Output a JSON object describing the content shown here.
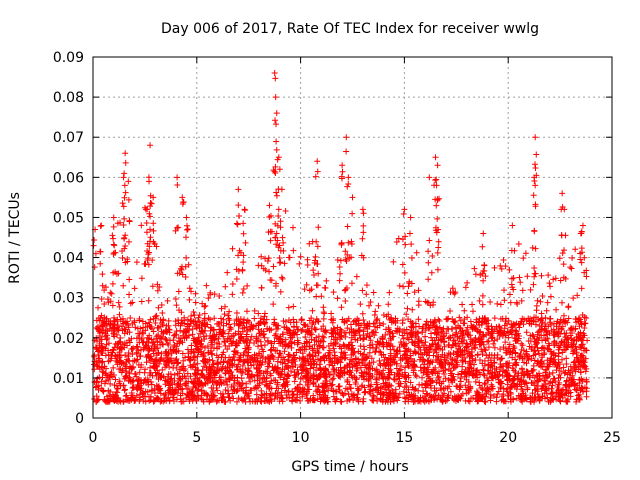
{
  "chart_data": {
    "type": "scatter",
    "title": "Day 006 of 2017, Rate Of TEC Index for receiver wwlg",
    "xlabel": "GPS time / hours",
    "ylabel": "ROTI / TECUs",
    "xlim": [
      0,
      25
    ],
    "ylim": [
      0,
      0.09
    ],
    "xticks": [
      0,
      5,
      10,
      15,
      20,
      25
    ],
    "xtick_labels": [
      "0",
      "5",
      "10",
      "15",
      "20",
      "25"
    ],
    "yticks": [
      0,
      0.01,
      0.02,
      0.03,
      0.04,
      0.05,
      0.06,
      0.07,
      0.08,
      0.09
    ],
    "ytick_labels": [
      "0",
      "0.01",
      "0.02",
      "0.03",
      "0.04",
      "0.05",
      "0.06",
      "0.07",
      "0.08",
      "0.09"
    ],
    "grid": true,
    "marker": "plus",
    "color": "#ff0000",
    "series": [
      {
        "name": "ROTI",
        "x_range": [
          0.05,
          23.8
        ],
        "baseline_range": [
          0.004,
          0.025
        ],
        "envelope": [
          [
            0.0,
            0.03
          ],
          [
            0.5,
            0.032
          ],
          [
            1.0,
            0.045
          ],
          [
            1.5,
            0.055
          ],
          [
            2.0,
            0.035
          ],
          [
            2.5,
            0.055
          ],
          [
            3.0,
            0.045
          ],
          [
            3.5,
            0.03
          ],
          [
            4.0,
            0.04
          ],
          [
            4.5,
            0.05
          ],
          [
            5.0,
            0.03
          ],
          [
            5.5,
            0.035
          ],
          [
            6.0,
            0.03
          ],
          [
            6.5,
            0.04
          ],
          [
            7.0,
            0.045
          ],
          [
            7.5,
            0.04
          ],
          [
            8.0,
            0.04
          ],
          [
            8.5,
            0.05
          ],
          [
            9.0,
            0.055
          ],
          [
            9.5,
            0.05
          ],
          [
            10.0,
            0.045
          ],
          [
            10.5,
            0.045
          ],
          [
            11.0,
            0.04
          ],
          [
            11.5,
            0.035
          ],
          [
            12.0,
            0.05
          ],
          [
            12.5,
            0.045
          ],
          [
            13.0,
            0.035
          ],
          [
            13.5,
            0.035
          ],
          [
            14.0,
            0.035
          ],
          [
            14.5,
            0.045
          ],
          [
            15.0,
            0.048
          ],
          [
            15.5,
            0.045
          ],
          [
            16.0,
            0.035
          ],
          [
            16.5,
            0.045
          ],
          [
            17.0,
            0.03
          ],
          [
            17.5,
            0.035
          ],
          [
            18.0,
            0.035
          ],
          [
            18.5,
            0.04
          ],
          [
            19.0,
            0.035
          ],
          [
            19.5,
            0.04
          ],
          [
            20.0,
            0.04
          ],
          [
            20.5,
            0.045
          ],
          [
            21.0,
            0.04
          ],
          [
            21.5,
            0.04
          ],
          [
            22.0,
            0.035
          ],
          [
            22.5,
            0.04
          ],
          [
            23.0,
            0.04
          ],
          [
            23.5,
            0.045
          ],
          [
            23.8,
            0.04
          ]
        ],
        "peaks": [
          [
            0.1,
            0.047
          ],
          [
            0.4,
            0.048
          ],
          [
            1.0,
            0.05
          ],
          [
            1.5,
            0.061
          ],
          [
            1.55,
            0.066
          ],
          [
            1.7,
            0.059
          ],
          [
            2.55,
            0.052
          ],
          [
            2.7,
            0.059
          ],
          [
            2.75,
            0.068
          ],
          [
            2.9,
            0.055
          ],
          [
            4.05,
            0.06
          ],
          [
            4.3,
            0.055
          ],
          [
            4.5,
            0.05
          ],
          [
            7.0,
            0.057
          ],
          [
            7.3,
            0.052
          ],
          [
            8.5,
            0.053
          ],
          [
            8.75,
            0.086
          ],
          [
            8.8,
            0.08
          ],
          [
            8.85,
            0.076
          ],
          [
            8.95,
            0.065
          ],
          [
            9.1,
            0.057
          ],
          [
            9.0,
            0.062
          ],
          [
            10.8,
            0.064
          ],
          [
            12.0,
            0.063
          ],
          [
            12.2,
            0.07
          ],
          [
            12.3,
            0.06
          ],
          [
            12.5,
            0.055
          ],
          [
            13.0,
            0.052
          ],
          [
            15.0,
            0.052
          ],
          [
            15.3,
            0.05
          ],
          [
            16.2,
            0.06
          ],
          [
            16.5,
            0.065
          ],
          [
            16.6,
            0.063
          ],
          [
            16.55,
            0.058
          ],
          [
            18.8,
            0.046
          ],
          [
            20.2,
            0.048
          ],
          [
            21.3,
            0.07
          ],
          [
            21.25,
            0.06
          ],
          [
            21.3,
            0.058
          ],
          [
            22.6,
            0.056
          ],
          [
            22.7,
            0.052
          ],
          [
            23.5,
            0.046
          ],
          [
            23.6,
            0.048
          ]
        ]
      }
    ]
  }
}
